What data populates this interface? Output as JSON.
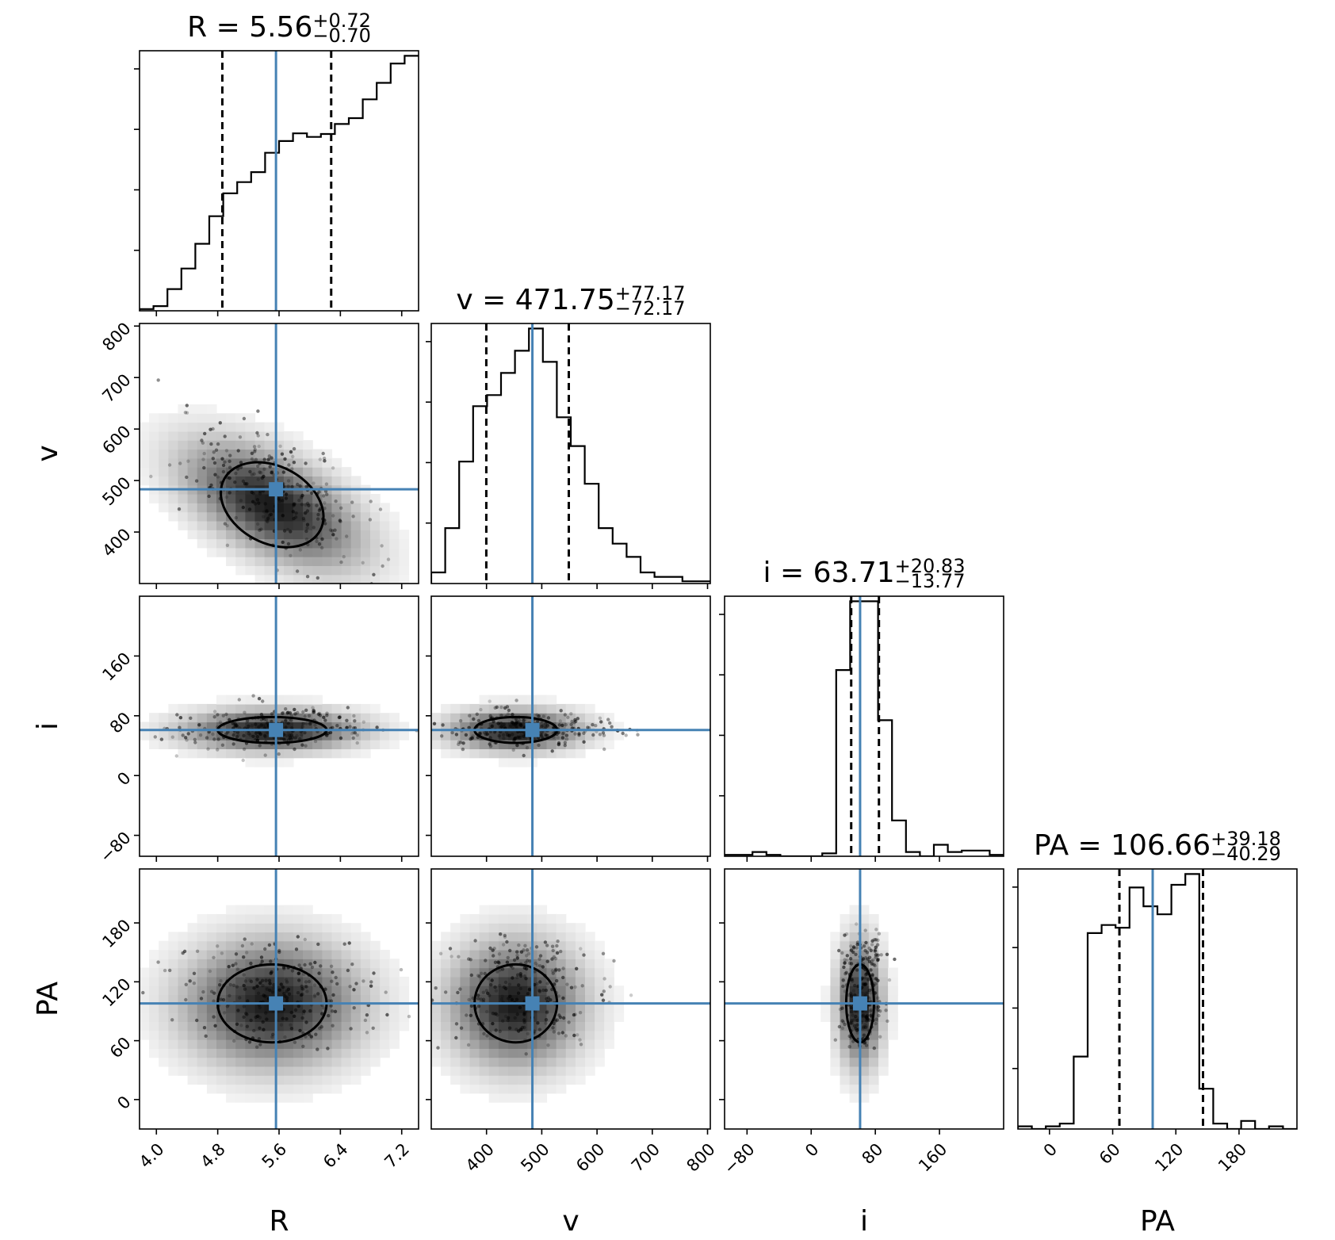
{
  "chart_data": {
    "type": "corner",
    "parameters": [
      {
        "name": "R",
        "label": "R",
        "title": {
          "prefix": "R = ",
          "median": "5.56",
          "plus": "+0.72",
          "minus": "−0.70"
        },
        "range": [
          3.78,
          7.42
        ],
        "ticks": [
          4.0,
          4.8,
          5.6,
          6.4,
          7.2
        ],
        "tick_labels": [
          "4.0",
          "4.8",
          "5.6",
          "6.4",
          "7.2"
        ],
        "truth": 5.56,
        "quantiles": [
          4.86,
          6.28
        ],
        "hist": {
          "edges": [
            3.78,
            3.962,
            4.144,
            4.326,
            4.508,
            4.69,
            4.872,
            5.054,
            5.236,
            5.418,
            5.6,
            5.782,
            5.964,
            6.146,
            6.328,
            6.51,
            6.692,
            6.874,
            7.056,
            7.238,
            7.42
          ],
          "counts": [
            3,
            8,
            37,
            72,
            114,
            161,
            200,
            219,
            236,
            269,
            289,
            302,
            296,
            301,
            318,
            328,
            360,
            388,
            421,
            434
          ]
        }
      },
      {
        "name": "v",
        "label": "v",
        "title": {
          "prefix": "v = ",
          "median": "471.75",
          "plus": "+77.17",
          "minus": "−72.17"
        },
        "range": [
          300,
          805
        ],
        "ticks": [
          400,
          500,
          600,
          700,
          800
        ],
        "tick_labels": [
          "400",
          "500",
          "600",
          "700",
          "800"
        ],
        "truth": 483,
        "quantiles": [
          399.6,
          548.9
        ],
        "hist": {
          "edges": [
            300,
            325.25,
            350.5,
            375.75,
            401,
            426.25,
            451.5,
            476.75,
            502,
            527.25,
            552.5,
            577.75,
            603,
            628.25,
            653.5,
            678.75,
            704,
            729.25,
            754.5,
            779.75,
            805
          ],
          "counts": [
            5,
            25,
            55,
            80,
            85,
            95,
            105,
            115,
            100,
            75,
            62,
            45,
            25,
            18,
            12,
            5,
            3,
            3,
            1,
            1
          ]
        }
      },
      {
        "name": "i",
        "label": "i",
        "title": {
          "prefix": "i = ",
          "median": "63.71",
          "plus": "+20.83",
          "minus": "−13.77"
        },
        "range": [
          -108,
          240
        ],
        "ticks": [
          -80,
          0,
          80,
          160
        ],
        "tick_labels": [
          "−80",
          "0",
          "80",
          "160"
        ],
        "truth": 61,
        "quantiles": [
          49.9,
          84.5
        ],
        "hist": {
          "edges": [
            -108,
            -90.6,
            -73.2,
            -55.8,
            -38.4,
            -21,
            -3.6,
            13.8,
            31.2,
            48.6,
            66,
            83.4,
            100.8,
            118.2,
            135.6,
            153,
            170.4,
            187.8,
            205.2,
            222.6,
            240
          ],
          "counts": [
            1,
            1,
            3,
            1,
            0,
            0,
            0,
            2,
            130,
            178,
            178,
            95,
            25,
            3,
            0,
            8,
            3,
            4,
            4,
            1
          ]
        }
      },
      {
        "name": "PA",
        "label": "PA",
        "title": {
          "prefix": "PA = ",
          "median": "106.66",
          "plus": "+39.18",
          "minus": "−40.29"
        },
        "range": [
          -30,
          235
        ],
        "ticks": [
          0,
          60,
          120,
          180
        ],
        "tick_labels": [
          "0",
          "60",
          "120",
          "180"
        ],
        "truth": 98,
        "quantiles": [
          66.4,
          145.8
        ],
        "hist": {
          "edges": [
            -30,
            -16.75,
            -3.5,
            9.75,
            23,
            36.25,
            49.5,
            62.75,
            76,
            89.25,
            102.5,
            115.75,
            129,
            142.25,
            155.5,
            168.75,
            182,
            195.25,
            208.5,
            221.75,
            235
          ],
          "counts": [
            1,
            0,
            1,
            2,
            27,
            73,
            76,
            75,
            90,
            83,
            80,
            91,
            95,
            15,
            2,
            0,
            3,
            0,
            1,
            0
          ]
        }
      }
    ]
  }
}
